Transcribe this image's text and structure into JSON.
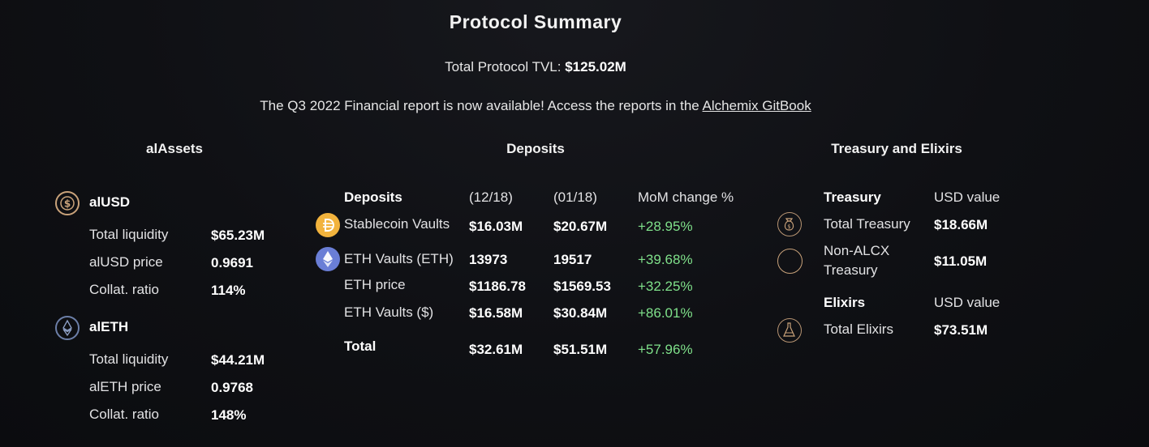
{
  "header": {
    "title": "Protocol Summary",
    "tvl_label": "Total Protocol TVL:",
    "tvl_value": "$125.02M",
    "report_text": "The Q3 2022 Financial report is now available! Access the reports in the",
    "report_link": "Alchemix GitBook"
  },
  "alassets": {
    "title": "alAssets",
    "alusd": {
      "name": "alUSD",
      "icon": "dollar-coin-icon",
      "rows": [
        {
          "label": "Total liquidity",
          "value": "$65.23M"
        },
        {
          "label": "alUSD price",
          "value": "0.9691"
        },
        {
          "label": "Collat. ratio",
          "value": "114%"
        }
      ]
    },
    "aleth": {
      "name": "alETH",
      "icon": "ethereum-coin-icon",
      "rows": [
        {
          "label": "Total liquidity",
          "value": "$44.21M"
        },
        {
          "label": "alETH price",
          "value": "0.9768"
        },
        {
          "label": "Collat. ratio",
          "value": "148%"
        }
      ]
    }
  },
  "deposits": {
    "title": "Deposits",
    "headers": [
      "Deposits",
      "(12/18)",
      "(01/18)",
      "MoM change %"
    ],
    "rows": [
      {
        "label": "Stablecoin Vaults",
        "icon": "stablecoin-icon",
        "prev": "$16.03M",
        "curr": "$20.67M",
        "change": "+28.95%"
      },
      {
        "label": "ETH Vaults (ETH)",
        "icon": "ethereum-icon",
        "prev": "13973",
        "curr": "19517",
        "change": "+39.68%"
      },
      {
        "label": "ETH price",
        "prev": "$1186.78",
        "curr": "$1569.53",
        "change": "+32.25%"
      },
      {
        "label": "ETH Vaults ($)",
        "prev": "$16.58M",
        "curr": "$30.84M",
        "change": "+86.01%"
      }
    ],
    "total": {
      "label": "Total",
      "prev": "$32.61M",
      "curr": "$51.51M",
      "change": "+57.96%"
    }
  },
  "treasury": {
    "title": "Treasury and Elixirs",
    "treasury_header": "Treasury",
    "treasury_col": "USD value",
    "total_treasury": {
      "label": "Total Treasury",
      "value": "$18.66M",
      "icon": "money-bag-icon"
    },
    "non_alcx": {
      "label_line1": "Non-ALCX",
      "label_line2": "Treasury",
      "value": "$11.05M",
      "icon": "ring-icon"
    },
    "elixirs_header": "Elixirs",
    "elixirs_col": "USD value",
    "total_elixirs": {
      "label": "Total Elixirs",
      "value": "$73.51M",
      "icon": "elixir-flask-icon"
    }
  },
  "colors": {
    "background": "#0f1014",
    "positive": "#7fe08a",
    "icon_gold": "#c9a27a",
    "stablecoin_gold": "#f2b33d",
    "eth_blue": "#6a7ed6"
  }
}
